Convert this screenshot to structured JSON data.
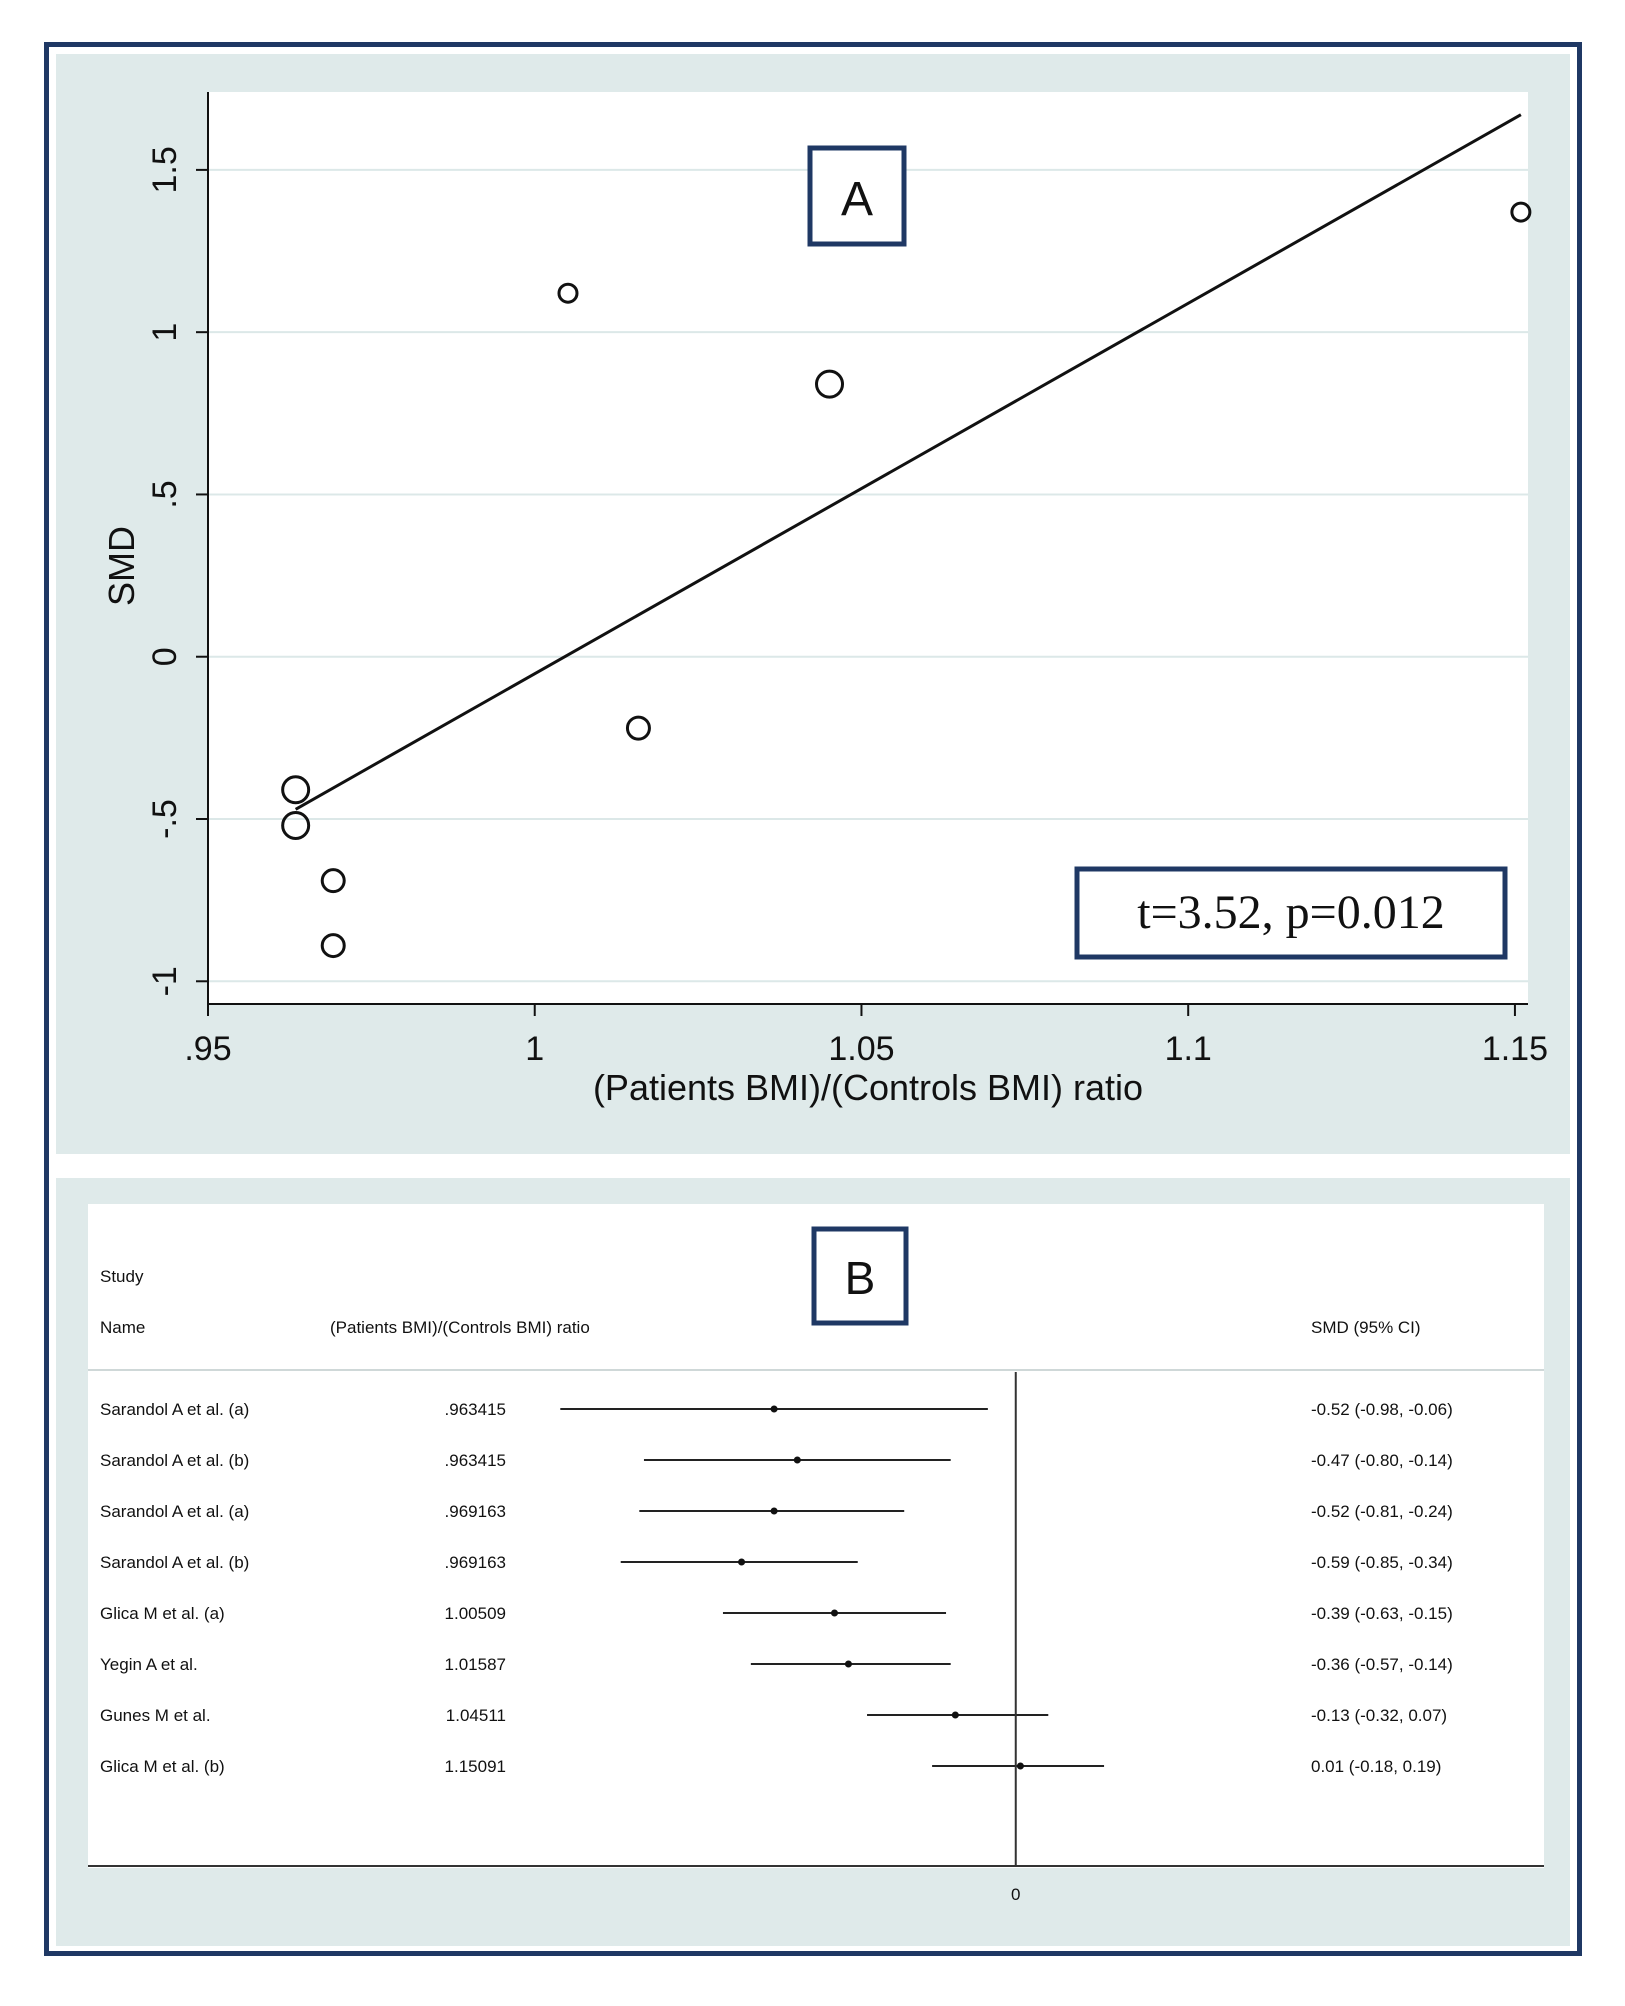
{
  "colors": {
    "frame": "#1f3864",
    "panel_bg": "#dfeaea",
    "plot_bg": "#ffffff",
    "grid": "#dce8e8",
    "ink": "#111111"
  },
  "chart_data": [
    {
      "type": "scatter",
      "panel_label": "A",
      "title": "",
      "xlabel": "(Patients BMI)/(Controls BMI) ratio",
      "ylabel": "SMD",
      "xlim": [
        0.95,
        1.152
      ],
      "ylim": [
        -1.07,
        1.74
      ],
      "xticks": [
        0.95,
        1.0,
        1.05,
        1.1,
        1.15
      ],
      "xtick_labels": [
        ".95",
        "1",
        "1.05",
        "1.1",
        "1.15"
      ],
      "yticks": [
        -1,
        -0.5,
        0,
        0.5,
        1,
        1.5
      ],
      "ytick_labels": [
        "-1",
        "-.5",
        "0",
        ".5",
        "1",
        "1.5"
      ],
      "grid": true,
      "points": [
        {
          "x": 0.963415,
          "y": -0.52,
          "size": "large"
        },
        {
          "x": 0.963415,
          "y": -0.41,
          "size": "large"
        },
        {
          "x": 0.969163,
          "y": -0.69,
          "size": "medium"
        },
        {
          "x": 0.969163,
          "y": -0.89,
          "size": "medium"
        },
        {
          "x": 1.00509,
          "y": 1.12,
          "size": "small"
        },
        {
          "x": 1.01587,
          "y": -0.22,
          "size": "medium"
        },
        {
          "x": 1.04511,
          "y": 0.84,
          "size": "large"
        },
        {
          "x": 1.15091,
          "y": 1.37,
          "size": "small"
        }
      ],
      "fit_line": {
        "x": [
          0.963415,
          1.15091
        ],
        "y": [
          -0.47,
          1.67
        ]
      },
      "annotation": "t=3.52, p=0.012"
    },
    {
      "type": "forest",
      "panel_label": "B",
      "header_study_line1": "Study",
      "header_study_line2": "Name",
      "header_ratio": "(Patients BMI)/(Controls BMI) ratio",
      "header_smd": "SMD (95% CI)",
      "xlim": [
        -1.17,
        0.22
      ],
      "reference_line": 0,
      "xtick_labels": [
        "0"
      ],
      "rows": [
        {
          "study": "Sarandol A et al. (a)",
          "ratio": ".963415",
          "smd": -0.52,
          "lo": -0.98,
          "hi": -0.06,
          "ci_text": "-0.52 (-0.98, -0.06)"
        },
        {
          "study": "Sarandol A et al. (b)",
          "ratio": ".963415",
          "smd": -0.47,
          "lo": -0.8,
          "hi": -0.14,
          "ci_text": "-0.47 (-0.80, -0.14)"
        },
        {
          "study": "Sarandol A et al. (a)",
          "ratio": ".969163",
          "smd": -0.52,
          "lo": -0.81,
          "hi": -0.24,
          "ci_text": "-0.52 (-0.81, -0.24)"
        },
        {
          "study": "Sarandol A et al. (b)",
          "ratio": ".969163",
          "smd": -0.59,
          "lo": -0.85,
          "hi": -0.34,
          "ci_text": "-0.59 (-0.85, -0.34)"
        },
        {
          "study": "Glica M et al. (a)",
          "ratio": "1.00509",
          "smd": -0.39,
          "lo": -0.63,
          "hi": -0.15,
          "ci_text": "-0.39 (-0.63, -0.15)"
        },
        {
          "study": "Yegin A et al.",
          "ratio": "1.01587",
          "smd": -0.36,
          "lo": -0.57,
          "hi": -0.14,
          "ci_text": "-0.36 (-0.57, -0.14)"
        },
        {
          "study": "Gunes M et al.",
          "ratio": "1.04511",
          "smd": -0.13,
          "lo": -0.32,
          "hi": 0.07,
          "ci_text": "-0.13 (-0.32, 0.07)"
        },
        {
          "study": "Glica M et al. (b)",
          "ratio": "1.15091",
          "smd": 0.01,
          "lo": -0.18,
          "hi": 0.19,
          "ci_text": "0.01 (-0.18, 0.19)"
        }
      ]
    }
  ]
}
